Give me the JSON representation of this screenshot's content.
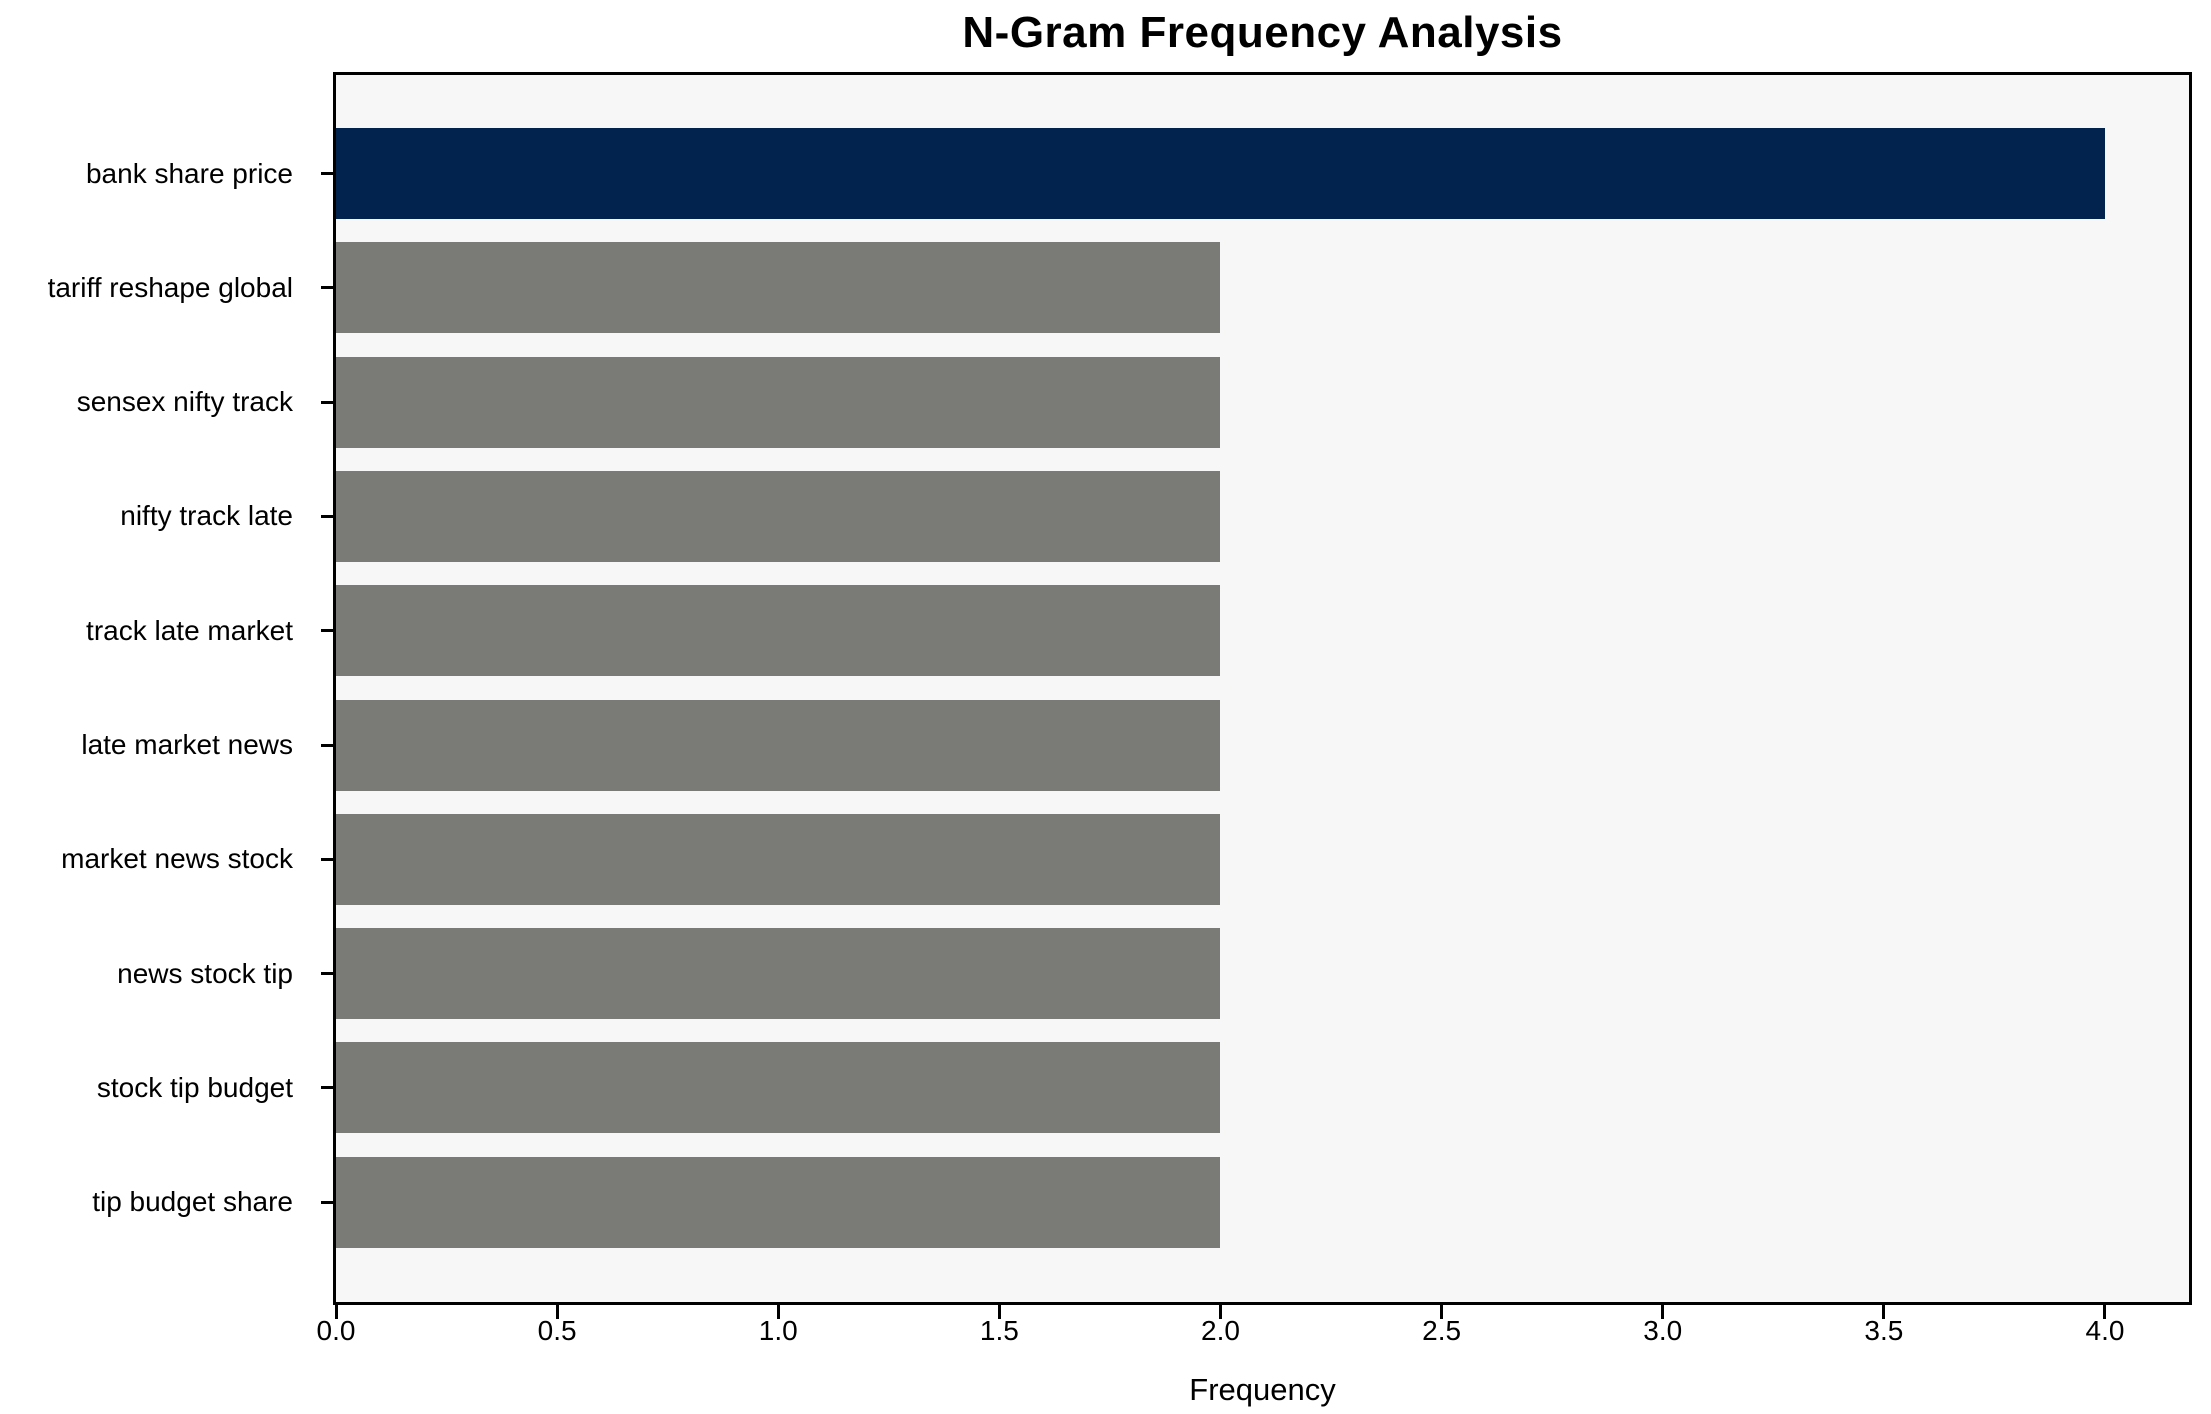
{
  "chart_data": {
    "type": "bar",
    "orientation": "horizontal",
    "title": "N-Gram Frequency Analysis",
    "xlabel": "Frequency",
    "ylabel": "",
    "categories": [
      "bank share price",
      "tariff reshape global",
      "sensex nifty track",
      "nifty track late",
      "track late market",
      "late market news",
      "market news stock",
      "news stock tip",
      "stock tip budget",
      "tip budget share"
    ],
    "values": [
      4,
      2,
      2,
      2,
      2,
      2,
      2,
      2,
      2,
      2
    ],
    "bar_colors": [
      "#01234e",
      "#7a7a77",
      "#7a7a77",
      "#7a7a77",
      "#7a7a77",
      "#7a7a77",
      "#7a7a77",
      "#7a7a77",
      "#7a7a77",
      "#7a7a77"
    ],
    "xticks": [
      "0.0",
      "0.5",
      "1.0",
      "1.5",
      "2.0",
      "2.5",
      "3.0",
      "3.5",
      "4.0"
    ],
    "xtick_values": [
      0,
      0.5,
      1,
      1.5,
      2,
      2.5,
      3,
      3.5,
      4
    ],
    "xlim": [
      0,
      4.19
    ],
    "grid": false,
    "legend": "none",
    "colors": {
      "highlight_bar": "#01234e",
      "default_bar": "#7a7a77",
      "plot_background": "#f8f7f7",
      "figure_background": "#ffffff",
      "spine": "#000000",
      "text": "#000000"
    }
  }
}
